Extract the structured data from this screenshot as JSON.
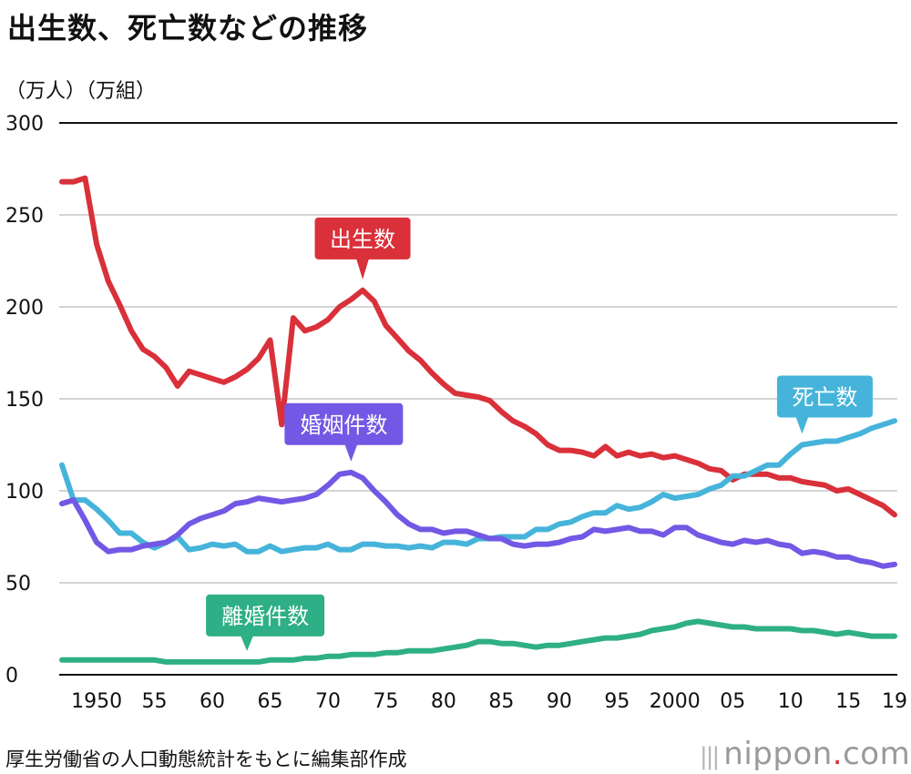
{
  "chart_data": {
    "type": "line",
    "title": "出生数、死亡数などの推移",
    "unit_label": "（万人）（万組）",
    "ylim": [
      0,
      300
    ],
    "yticks": [
      0,
      50,
      100,
      150,
      200,
      250,
      300
    ],
    "xlim": [
      1947,
      2019
    ],
    "xticks": [
      {
        "x": 1950,
        "label": "1950"
      },
      {
        "x": 1955,
        "label": "55"
      },
      {
        "x": 1960,
        "label": "60"
      },
      {
        "x": 1965,
        "label": "65"
      },
      {
        "x": 1970,
        "label": "70"
      },
      {
        "x": 1975,
        "label": "75"
      },
      {
        "x": 1980,
        "label": "80"
      },
      {
        "x": 1985,
        "label": "85"
      },
      {
        "x": 1990,
        "label": "90"
      },
      {
        "x": 1995,
        "label": "95"
      },
      {
        "x": 2000,
        "label": "2000"
      },
      {
        "x": 2005,
        "label": "05"
      },
      {
        "x": 2010,
        "label": "10"
      },
      {
        "x": 2015,
        "label": "15"
      },
      {
        "x": 2019,
        "label": "19"
      }
    ],
    "grid": "horizontal",
    "series": [
      {
        "name": "出生数",
        "color": "#d9303a",
        "callout_at": 1973,
        "points": [
          [
            1947,
            268
          ],
          [
            1948,
            268
          ],
          [
            1949,
            270
          ],
          [
            1950,
            234
          ],
          [
            1951,
            214
          ],
          [
            1952,
            201
          ],
          [
            1953,
            187
          ],
          [
            1954,
            177
          ],
          [
            1955,
            173
          ],
          [
            1956,
            167
          ],
          [
            1957,
            157
          ],
          [
            1958,
            165
          ],
          [
            1959,
            163
          ],
          [
            1960,
            161
          ],
          [
            1961,
            159
          ],
          [
            1962,
            162
          ],
          [
            1963,
            166
          ],
          [
            1964,
            172
          ],
          [
            1965,
            182
          ],
          [
            1966,
            136
          ],
          [
            1967,
            194
          ],
          [
            1968,
            187
          ],
          [
            1969,
            189
          ],
          [
            1970,
            193
          ],
          [
            1971,
            200
          ],
          [
            1972,
            204
          ],
          [
            1973,
            209
          ],
          [
            1974,
            203
          ],
          [
            1975,
            190
          ],
          [
            1976,
            183
          ],
          [
            1977,
            176
          ],
          [
            1978,
            171
          ],
          [
            1979,
            164
          ],
          [
            1980,
            158
          ],
          [
            1981,
            153
          ],
          [
            1982,
            152
          ],
          [
            1983,
            151
          ],
          [
            1984,
            149
          ],
          [
            1985,
            143
          ],
          [
            1986,
            138
          ],
          [
            1987,
            135
          ],
          [
            1988,
            131
          ],
          [
            1989,
            125
          ],
          [
            1990,
            122
          ],
          [
            1991,
            122
          ],
          [
            1992,
            121
          ],
          [
            1993,
            119
          ],
          [
            1994,
            124
          ],
          [
            1995,
            119
          ],
          [
            1996,
            121
          ],
          [
            1997,
            119
          ],
          [
            1998,
            120
          ],
          [
            1999,
            118
          ],
          [
            2000,
            119
          ],
          [
            2001,
            117
          ],
          [
            2002,
            115
          ],
          [
            2003,
            112
          ],
          [
            2004,
            111
          ],
          [
            2005,
            106
          ],
          [
            2006,
            109
          ],
          [
            2007,
            109
          ],
          [
            2008,
            109
          ],
          [
            2009,
            107
          ],
          [
            2010,
            107
          ],
          [
            2011,
            105
          ],
          [
            2012,
            104
          ],
          [
            2013,
            103
          ],
          [
            2014,
            100
          ],
          [
            2015,
            101
          ],
          [
            2016,
            98
          ],
          [
            2017,
            95
          ],
          [
            2018,
            92
          ],
          [
            2019,
            87
          ]
        ]
      },
      {
        "name": "死亡数",
        "color": "#46b4da",
        "callout_at": 2011,
        "points": [
          [
            1947,
            114
          ],
          [
            1948,
            95
          ],
          [
            1949,
            95
          ],
          [
            1950,
            90
          ],
          [
            1951,
            84
          ],
          [
            1952,
            77
          ],
          [
            1953,
            77
          ],
          [
            1954,
            72
          ],
          [
            1955,
            69
          ],
          [
            1956,
            72
          ],
          [
            1957,
            75
          ],
          [
            1958,
            68
          ],
          [
            1959,
            69
          ],
          [
            1960,
            71
          ],
          [
            1961,
            70
          ],
          [
            1962,
            71
          ],
          [
            1963,
            67
          ],
          [
            1964,
            67
          ],
          [
            1965,
            70
          ],
          [
            1966,
            67
          ],
          [
            1967,
            68
          ],
          [
            1968,
            69
          ],
          [
            1969,
            69
          ],
          [
            1970,
            71
          ],
          [
            1971,
            68
          ],
          [
            1972,
            68
          ],
          [
            1973,
            71
          ],
          [
            1974,
            71
          ],
          [
            1975,
            70
          ],
          [
            1976,
            70
          ],
          [
            1977,
            69
          ],
          [
            1978,
            70
          ],
          [
            1979,
            69
          ],
          [
            1980,
            72
          ],
          [
            1981,
            72
          ],
          [
            1982,
            71
          ],
          [
            1983,
            74
          ],
          [
            1984,
            74
          ],
          [
            1985,
            75
          ],
          [
            1986,
            75
          ],
          [
            1987,
            75
          ],
          [
            1988,
            79
          ],
          [
            1989,
            79
          ],
          [
            1990,
            82
          ],
          [
            1991,
            83
          ],
          [
            1992,
            86
          ],
          [
            1993,
            88
          ],
          [
            1994,
            88
          ],
          [
            1995,
            92
          ],
          [
            1996,
            90
          ],
          [
            1997,
            91
          ],
          [
            1998,
            94
          ],
          [
            1999,
            98
          ],
          [
            2000,
            96
          ],
          [
            2001,
            97
          ],
          [
            2002,
            98
          ],
          [
            2003,
            101
          ],
          [
            2004,
            103
          ],
          [
            2005,
            108
          ],
          [
            2006,
            108
          ],
          [
            2007,
            111
          ],
          [
            2008,
            114
          ],
          [
            2009,
            114
          ],
          [
            2010,
            120
          ],
          [
            2011,
            125
          ],
          [
            2012,
            126
          ],
          [
            2013,
            127
          ],
          [
            2014,
            127
          ],
          [
            2015,
            129
          ],
          [
            2016,
            131
          ],
          [
            2017,
            134
          ],
          [
            2018,
            136
          ],
          [
            2019,
            138
          ]
        ]
      },
      {
        "name": "婚姻件数",
        "color": "#7258e4",
        "callout_at": 1972,
        "points": [
          [
            1947,
            93
          ],
          [
            1948,
            95
          ],
          [
            1949,
            84
          ],
          [
            1950,
            72
          ],
          [
            1951,
            67
          ],
          [
            1952,
            68
          ],
          [
            1953,
            68
          ],
          [
            1954,
            70
          ],
          [
            1955,
            71
          ],
          [
            1956,
            72
          ],
          [
            1957,
            76
          ],
          [
            1958,
            82
          ],
          [
            1959,
            85
          ],
          [
            1960,
            87
          ],
          [
            1961,
            89
          ],
          [
            1962,
            93
          ],
          [
            1963,
            94
          ],
          [
            1964,
            96
          ],
          [
            1965,
            95
          ],
          [
            1966,
            94
          ],
          [
            1967,
            95
          ],
          [
            1968,
            96
          ],
          [
            1969,
            98
          ],
          [
            1970,
            103
          ],
          [
            1971,
            109
          ],
          [
            1972,
            110
          ],
          [
            1973,
            107
          ],
          [
            1974,
            100
          ],
          [
            1975,
            94
          ],
          [
            1976,
            87
          ],
          [
            1977,
            82
          ],
          [
            1978,
            79
          ],
          [
            1979,
            79
          ],
          [
            1980,
            77
          ],
          [
            1981,
            78
          ],
          [
            1982,
            78
          ],
          [
            1983,
            76
          ],
          [
            1984,
            74
          ],
          [
            1985,
            74
          ],
          [
            1986,
            71
          ],
          [
            1987,
            70
          ],
          [
            1988,
            71
          ],
          [
            1989,
            71
          ],
          [
            1990,
            72
          ],
          [
            1991,
            74
          ],
          [
            1992,
            75
          ],
          [
            1993,
            79
          ],
          [
            1994,
            78
          ],
          [
            1995,
            79
          ],
          [
            1996,
            80
          ],
          [
            1997,
            78
          ],
          [
            1998,
            78
          ],
          [
            1999,
            76
          ],
          [
            2000,
            80
          ],
          [
            2001,
            80
          ],
          [
            2002,
            76
          ],
          [
            2003,
            74
          ],
          [
            2004,
            72
          ],
          [
            2005,
            71
          ],
          [
            2006,
            73
          ],
          [
            2007,
            72
          ],
          [
            2008,
            73
          ],
          [
            2009,
            71
          ],
          [
            2010,
            70
          ],
          [
            2011,
            66
          ],
          [
            2012,
            67
          ],
          [
            2013,
            66
          ],
          [
            2014,
            64
          ],
          [
            2015,
            64
          ],
          [
            2016,
            62
          ],
          [
            2017,
            61
          ],
          [
            2018,
            59
          ],
          [
            2019,
            60
          ]
        ]
      },
      {
        "name": "離婚件数",
        "color": "#2eaf85",
        "callout_at": 1963,
        "points": [
          [
            1947,
            8
          ],
          [
            1948,
            8
          ],
          [
            1949,
            8
          ],
          [
            1950,
            8
          ],
          [
            1951,
            8
          ],
          [
            1952,
            8
          ],
          [
            1953,
            8
          ],
          [
            1954,
            8
          ],
          [
            1955,
            8
          ],
          [
            1956,
            7
          ],
          [
            1957,
            7
          ],
          [
            1958,
            7
          ],
          [
            1959,
            7
          ],
          [
            1960,
            7
          ],
          [
            1961,
            7
          ],
          [
            1962,
            7
          ],
          [
            1963,
            7
          ],
          [
            1964,
            7
          ],
          [
            1965,
            8
          ],
          [
            1966,
            8
          ],
          [
            1967,
            8
          ],
          [
            1968,
            9
          ],
          [
            1969,
            9
          ],
          [
            1970,
            10
          ],
          [
            1971,
            10
          ],
          [
            1972,
            11
          ],
          [
            1973,
            11
          ],
          [
            1974,
            11
          ],
          [
            1975,
            12
          ],
          [
            1976,
            12
          ],
          [
            1977,
            13
          ],
          [
            1978,
            13
          ],
          [
            1979,
            13
          ],
          [
            1980,
            14
          ],
          [
            1981,
            15
          ],
          [
            1982,
            16
          ],
          [
            1983,
            18
          ],
          [
            1984,
            18
          ],
          [
            1985,
            17
          ],
          [
            1986,
            17
          ],
          [
            1987,
            16
          ],
          [
            1988,
            15
          ],
          [
            1989,
            16
          ],
          [
            1990,
            16
          ],
          [
            1991,
            17
          ],
          [
            1992,
            18
          ],
          [
            1993,
            19
          ],
          [
            1994,
            20
          ],
          [
            1995,
            20
          ],
          [
            1996,
            21
          ],
          [
            1997,
            22
          ],
          [
            1998,
            24
          ],
          [
            1999,
            25
          ],
          [
            2000,
            26
          ],
          [
            2001,
            28
          ],
          [
            2002,
            29
          ],
          [
            2003,
            28
          ],
          [
            2004,
            27
          ],
          [
            2005,
            26
          ],
          [
            2006,
            26
          ],
          [
            2007,
            25
          ],
          [
            2008,
            25
          ],
          [
            2009,
            25
          ],
          [
            2010,
            25
          ],
          [
            2011,
            24
          ],
          [
            2012,
            24
          ],
          [
            2013,
            23
          ],
          [
            2014,
            22
          ],
          [
            2015,
            23
          ],
          [
            2016,
            22
          ],
          [
            2017,
            21
          ],
          [
            2018,
            21
          ],
          [
            2019,
            21
          ]
        ]
      }
    ]
  },
  "source_note": "厚生労働省の人口動態統計をもとに編集部作成",
  "logo": {
    "name": "nippon",
    "dot": ".",
    "tld": "com"
  }
}
